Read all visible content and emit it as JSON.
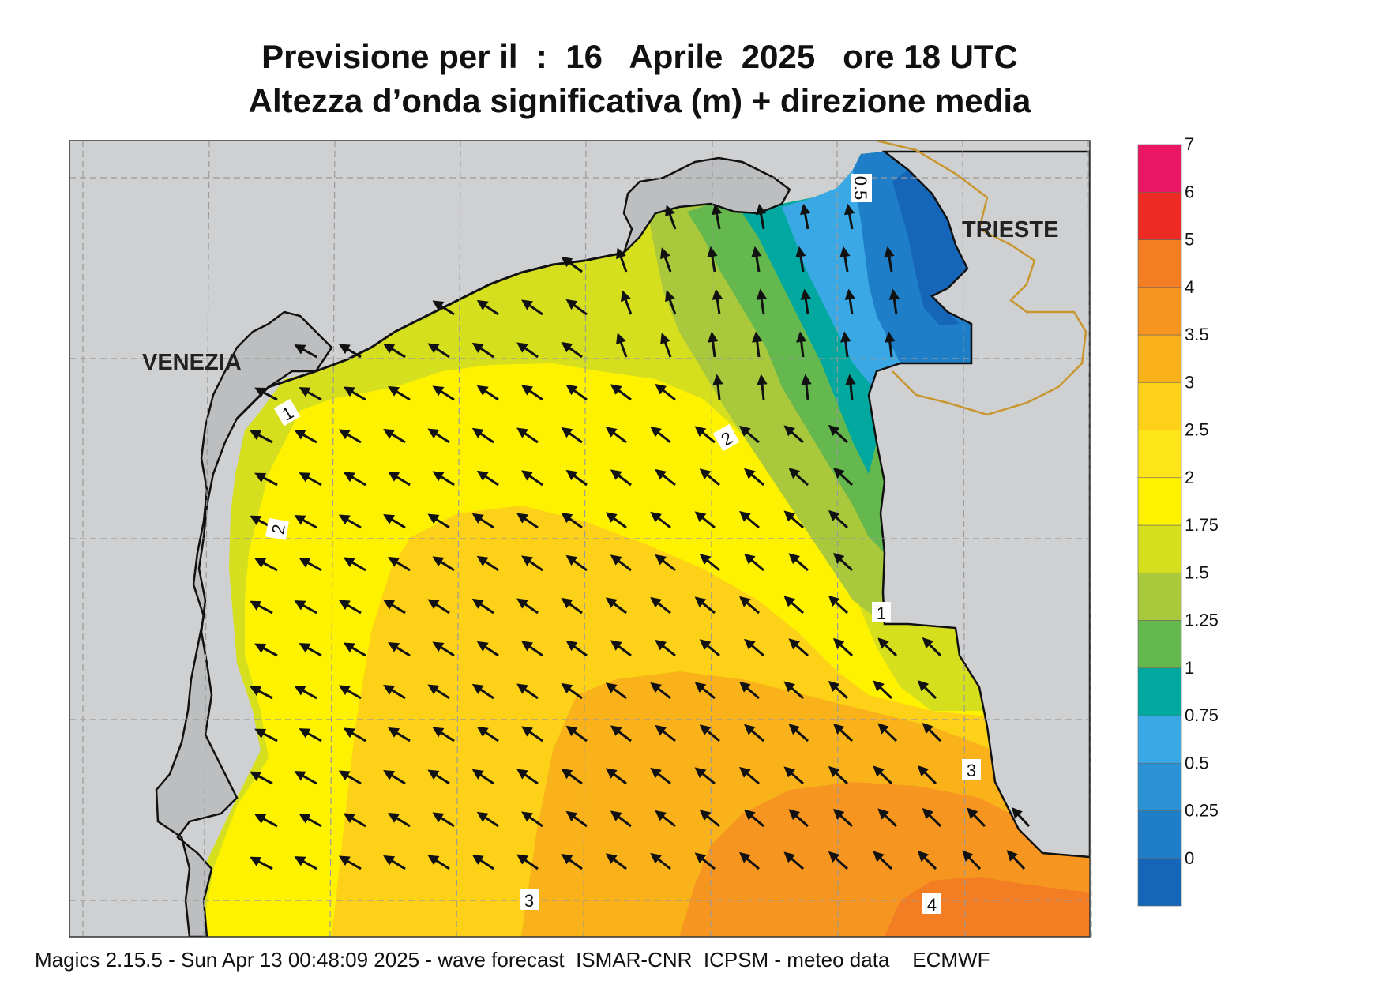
{
  "header": {
    "title_line1": "Previsione per il  :  16   Aprile  2025   ore 18 UTC",
    "title_line2": "Altezza d’onda significativa (m) + direzione media"
  },
  "footer": {
    "text": "Magics 2.15.5 - Sun Apr 13 00:48:09 2025 - wave forecast  ISMAR-CNR  ICPSM - meteo data    ECMWF"
  },
  "map": {
    "cities": {
      "venezia": "VENEZIA",
      "trieste": "TRIESTE"
    },
    "contour_labels": [
      "0.5",
      "1",
      "1",
      "2",
      "2",
      "3",
      "3",
      "4"
    ],
    "arrow_direction": "north-west",
    "colors": {
      "land": "#cfd0d2",
      "coast": "#111111",
      "border": "#c8962e",
      "grid": "#9a9a9a"
    }
  },
  "legend": {
    "ticks": [
      "7",
      "6",
      "5",
      "4",
      "3.5",
      "3",
      "2.5",
      "2",
      "1.75",
      "1.5",
      "1.25",
      "1",
      "0.75",
      "0.5",
      "0.25",
      "0"
    ],
    "colors": [
      "#1565b8",
      "#1f7ec8",
      "#2b92d6",
      "#39a8e4",
      "#00a8a0",
      "#65b84e",
      "#a9c83c",
      "#d6df1e",
      "#fff200",
      "#fde51a",
      "#fcd117",
      "#f9b21a",
      "#f6951f",
      "#f27d22",
      "#ee2a24",
      "#ea1563"
    ]
  }
}
